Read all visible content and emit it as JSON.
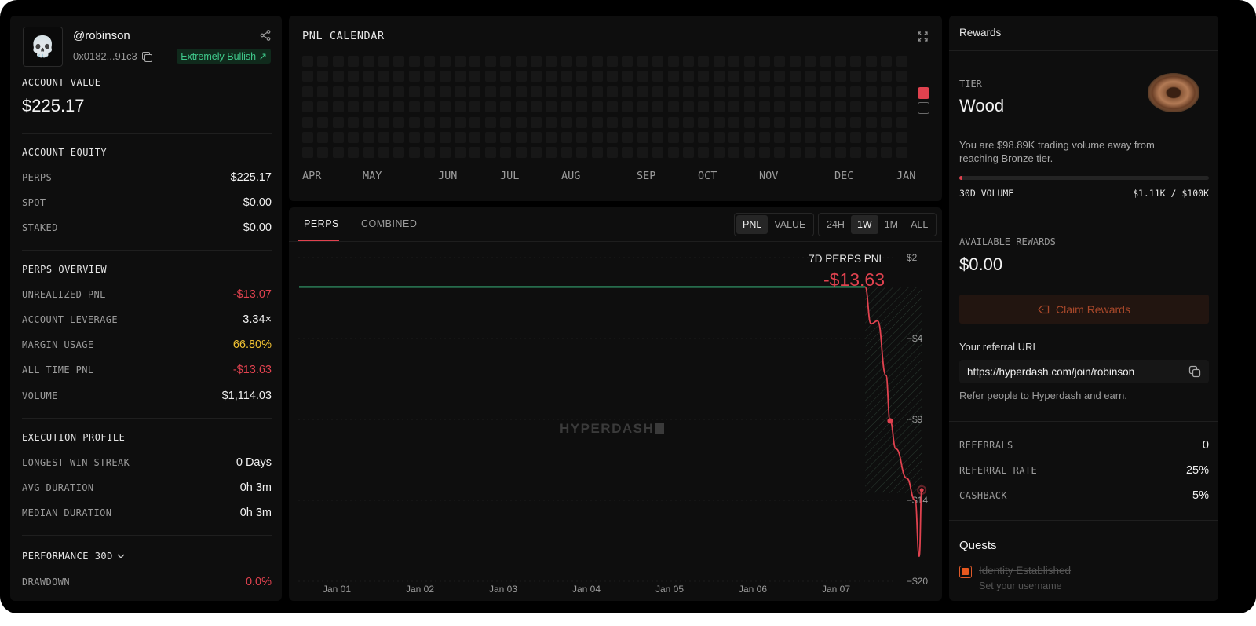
{
  "profile": {
    "username": "@robinson",
    "address": "0x0182...91c3",
    "sentiment": "Extremely Bullish ↗",
    "avatar_glyph": "💀"
  },
  "account": {
    "value_label": "ACCOUNT VALUE",
    "value": "$225.17",
    "equity_label": "ACCOUNT EQUITY",
    "equity": [
      {
        "k": "PERPS",
        "v": "$225.17"
      },
      {
        "k": "SPOT",
        "v": "$0.00"
      },
      {
        "k": "STAKED",
        "v": "$0.00"
      }
    ],
    "overview_label": "PERPS OVERVIEW",
    "overview": [
      {
        "k": "UNREALIZED PNL",
        "v": "-$13.07"
      },
      {
        "k": "ACCOUNT LEVERAGE",
        "v": "3.34×"
      },
      {
        "k": "MARGIN USAGE",
        "v": "66.80%"
      },
      {
        "k": "ALL TIME PNL",
        "v": "-$13.63"
      },
      {
        "k": "VOLUME",
        "v": "$1,114.03"
      }
    ],
    "exec_label": "EXECUTION PROFILE",
    "exec": [
      {
        "k": "LONGEST WIN STREAK",
        "v": "0 Days"
      },
      {
        "k": "AVG DURATION",
        "v": "0h 3m"
      },
      {
        "k": "MEDIAN DURATION",
        "v": "0h 3m"
      }
    ],
    "perf_label": "PERFORMANCE 30D",
    "perf": [
      {
        "k": "DRAWDOWN",
        "v": "0.0%"
      }
    ]
  },
  "calendar": {
    "title": "PNL CALENDAR",
    "months": [
      "APR",
      "MAY",
      "JUN",
      "JUL",
      "AUG",
      "SEP",
      "OCT",
      "NOV",
      "DEC",
      "JAN"
    ],
    "weeks": 40,
    "days": 7
  },
  "chart_panel": {
    "tabs": [
      "PERPS",
      "COMBINED"
    ],
    "active_tab": "PERPS",
    "metric_toggle": [
      "PNL",
      "VALUE"
    ],
    "metric_active": "PNL",
    "range_toggle": [
      "24H",
      "1W",
      "1M",
      "ALL"
    ],
    "range_active": "1W",
    "watermark": "HYPERDASH",
    "summary_label": "7D PERPS PNL",
    "summary_value": "-$13.63"
  },
  "chart_data": {
    "type": "line",
    "title": "7D PERPS PNL",
    "x_ticks": [
      "Jan 01",
      "Jan 02",
      "Jan 03",
      "Jan 04",
      "Jan 05",
      "Jan 06",
      "Jan 07"
    ],
    "y_ticks": [
      "$2",
      "−$4",
      "−$9",
      "−$14",
      "−$20"
    ],
    "ylim": [
      -20,
      2
    ],
    "grid": true,
    "series": [
      {
        "color_positive": "#3fc98b",
        "color_negative": "#e0424f",
        "points": [
          {
            "x": 0.0,
            "y": 0.0
          },
          {
            "x": 6.35,
            "y": 0.0
          },
          {
            "x": 6.42,
            "y": -2.5
          },
          {
            "x": 6.5,
            "y": -2.3
          },
          {
            "x": 6.6,
            "y": -6.0
          },
          {
            "x": 6.65,
            "y": -9.1
          },
          {
            "x": 6.72,
            "y": -11.0
          },
          {
            "x": 6.85,
            "y": -13.0
          },
          {
            "x": 6.95,
            "y": -14.5
          },
          {
            "x": 7.0,
            "y": -18.3
          },
          {
            "x": 7.03,
            "y": -13.8
          }
        ]
      }
    ]
  },
  "rewards": {
    "title": "Rewards",
    "tier_label": "TIER",
    "tier": "Wood",
    "tier_message": "You are $98.89K trading volume away from reaching Bronze tier.",
    "volume_label": "30D VOLUME",
    "volume_value": "$1.11K / $100K",
    "volume_fraction": 0.0111,
    "available_label": "AVAILABLE REWARDS",
    "available_value": "$0.00",
    "claim_label": "Claim Rewards",
    "referral_label": "Your referral URL",
    "referral_url": "https://hyperdash.com/join/robinson",
    "referral_hint": "Refer people to Hyperdash and earn.",
    "stats": [
      {
        "k": "REFERRALS",
        "v": "0"
      },
      {
        "k": "REFERRAL RATE",
        "v": "25%"
      },
      {
        "k": "CASHBACK",
        "v": "5%"
      }
    ],
    "quests_title": "Quests",
    "quest_name": "Identity Established",
    "quest_desc": "Set your username"
  },
  "colors": {
    "accent_red": "#e0424f",
    "accent_green": "#3fc98b",
    "warning_yellow": "#f1c232"
  }
}
